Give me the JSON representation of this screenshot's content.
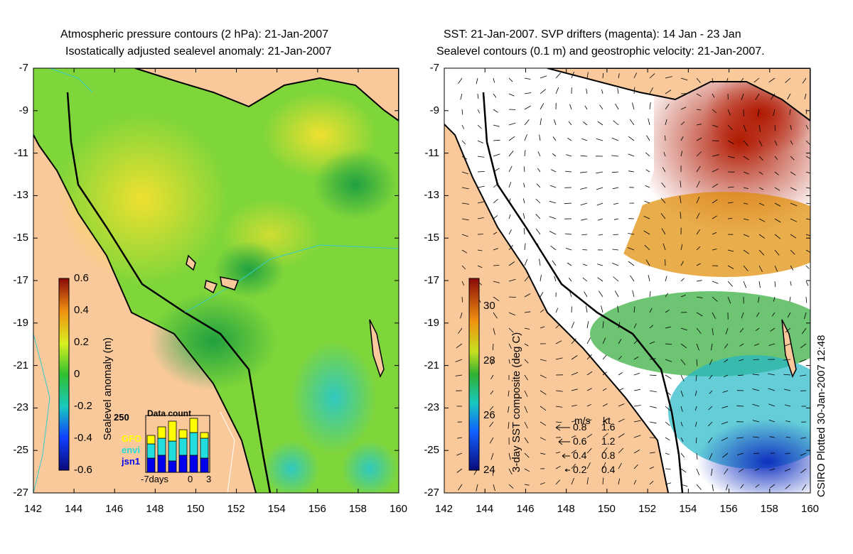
{
  "left_panel": {
    "title_line1": "Atmospheric pressure contours (2 hPa): 21-Jan-2007",
    "title_line2": "Isostatically adjusted sealevel anomaly: 21-Jan-2007",
    "colorbar": {
      "label": "Sealevel anomaly (m)",
      "ticks": [
        "0.6",
        "0.4",
        "0.2",
        "0",
        "-0.2",
        "-0.4",
        "-0.6"
      ],
      "range": [
        -0.6,
        0.6
      ]
    },
    "inset": {
      "title": "Data count",
      "ymax_label": "250",
      "xlabels": [
        "-7days",
        "0",
        "3"
      ],
      "legend": [
        {
          "name": "GFO",
          "color": "#ffff00"
        },
        {
          "name": "envi",
          "color": "#22dddd"
        },
        {
          "name": "jsn1",
          "color": "#0000ee"
        }
      ],
      "bars": [
        {
          "jsn1": 0.25,
          "envi": 0.25,
          "gfo": 0.15
        },
        {
          "jsn1": 0.3,
          "envi": 0.3,
          "gfo": 0.2
        },
        {
          "jsn1": 0.2,
          "envi": 0.35,
          "gfo": 0.35
        },
        {
          "jsn1": 0.3,
          "envi": 0.3,
          "gfo": 0.15
        },
        {
          "jsn1": 0.3,
          "envi": 0.4,
          "gfo": 0.25
        },
        {
          "jsn1": 0.25,
          "envi": 0.35,
          "gfo": 0.1
        }
      ]
    }
  },
  "right_panel": {
    "title_line1": "SST: 21-Jan-2007. SVP drifters (magenta): 14 Jan - 23 Jan",
    "title_line2": "Sealevel contours (0.1 m) and geostrophic velocity: 21-Jan-2007.",
    "colorbar": {
      "label": "3-day SST composite (deg C)",
      "ticks": [
        "30",
        "28",
        "26",
        "24"
      ],
      "range": [
        24,
        31
      ]
    },
    "vector_key": {
      "header_ms": "m/s",
      "header_kt": "kt",
      "rows": [
        {
          "ms": "0.8",
          "kt": "1.6"
        },
        {
          "ms": "0.6",
          "kt": "1.2"
        },
        {
          "ms": "0.4",
          "kt": "0.8"
        },
        {
          "ms": "0.2",
          "kt": "0.4"
        }
      ]
    }
  },
  "axes": {
    "lon_ticks": [
      "142",
      "144",
      "146",
      "148",
      "150",
      "152",
      "154",
      "156",
      "158",
      "160"
    ],
    "lat_ticks": [
      "-7",
      "-9",
      "-11",
      "-13",
      "-15",
      "-17",
      "-19",
      "-21",
      "-23",
      "-25",
      "-27"
    ]
  },
  "colors": {
    "land": "#f9c99b",
    "sla_green": "#7fd63a",
    "sst_white": "#ffffff",
    "sst_red": "#b51e00",
    "sst_orange": "#e08a00",
    "sst_green": "#3cb043",
    "sst_blue": "#1565d8",
    "coast": "#000000",
    "contour_cyan": "#33cccc"
  },
  "credit": "CSIRO Plotted 30-Jan-2007 12:48"
}
